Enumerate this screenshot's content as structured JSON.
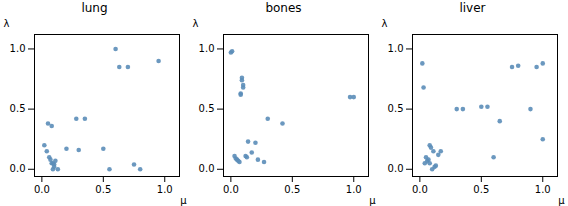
{
  "chart_data": [
    {
      "type": "scatter",
      "title": "lung",
      "xlabel": "μ",
      "ylabel": "λ",
      "x": [
        0.02,
        0.04,
        0.05,
        0.06,
        0.07,
        0.08,
        0.09,
        0.1,
        0.1,
        0.11,
        0.08,
        0.09,
        0.13,
        0.2,
        0.28,
        0.3,
        0.35,
        0.5,
        0.55,
        0.6,
        0.63,
        0.7,
        0.75,
        0.8,
        0.95
      ],
      "values": [
        0.2,
        0.15,
        0.38,
        0.1,
        0.08,
        0.05,
        0.05,
        0.04,
        0.02,
        0.07,
        0.36,
        0.0,
        0.0,
        0.17,
        0.42,
        0.16,
        0.42,
        0.17,
        0.0,
        1.0,
        0.85,
        0.85,
        0.04,
        0.0,
        0.9
      ],
      "color": "#5b8db8",
      "xlim": [
        -0.06,
        1.12
      ],
      "ylim": [
        -0.06,
        1.12
      ],
      "xticks": [
        {
          "value": 0.0,
          "label": "0.0"
        },
        {
          "value": 0.5,
          "label": "0.5"
        },
        {
          "value": 1.0,
          "label": "1.0"
        }
      ],
      "yticks": [
        {
          "value": 0.0,
          "label": "0.0"
        },
        {
          "value": 0.5,
          "label": "0.5"
        },
        {
          "value": 1.0,
          "label": "1.0"
        }
      ],
      "grid": false
    },
    {
      "type": "scatter",
      "title": "bones",
      "xlabel": "μ",
      "ylabel": "λ",
      "x": [
        0.0,
        0.01,
        0.03,
        0.04,
        0.05,
        0.06,
        0.07,
        0.08,
        0.08,
        0.09,
        0.09,
        0.1,
        0.1,
        0.12,
        0.13,
        0.14,
        0.17,
        0.2,
        0.22,
        0.27,
        0.3,
        0.42,
        0.97,
        1.0
      ],
      "values": [
        0.97,
        0.98,
        0.11,
        0.09,
        0.08,
        0.07,
        0.06,
        0.63,
        0.62,
        0.76,
        0.74,
        0.7,
        0.68,
        0.11,
        0.1,
        0.23,
        0.14,
        0.22,
        0.08,
        0.06,
        0.42,
        0.38,
        0.6,
        0.6
      ],
      "color": "#5b8db8",
      "xlim": [
        -0.06,
        1.12
      ],
      "ylim": [
        -0.06,
        1.12
      ],
      "xticks": [
        {
          "value": 0.0,
          "label": "0.0"
        },
        {
          "value": 0.5,
          "label": "0.5"
        },
        {
          "value": 1.0,
          "label": "1.0"
        }
      ],
      "yticks": [
        {
          "value": 0.0,
          "label": "0.0"
        },
        {
          "value": 0.5,
          "label": "0.5"
        },
        {
          "value": 1.0,
          "label": "1.0"
        }
      ],
      "grid": false
    },
    {
      "type": "scatter",
      "title": "liver",
      "xlabel": "μ",
      "ylabel": "λ",
      "x": [
        0.02,
        0.03,
        0.04,
        0.05,
        0.06,
        0.07,
        0.08,
        0.08,
        0.09,
        0.1,
        0.11,
        0.12,
        0.13,
        0.15,
        0.17,
        0.3,
        0.35,
        0.5,
        0.55,
        0.6,
        0.65,
        0.75,
        0.8,
        0.9,
        0.95,
        1.0,
        1.0
      ],
      "values": [
        0.88,
        0.68,
        0.05,
        0.1,
        0.07,
        0.08,
        0.05,
        0.2,
        0.18,
        0.0,
        0.15,
        0.02,
        0.03,
        0.12,
        0.15,
        0.5,
        0.5,
        0.52,
        0.52,
        0.1,
        0.4,
        0.85,
        0.86,
        0.5,
        0.85,
        0.88,
        0.25
      ],
      "color": "#5b8db8",
      "xlim": [
        -0.06,
        1.12
      ],
      "ylim": [
        -0.06,
        1.12
      ],
      "xticks": [
        {
          "value": 0.0,
          "label": "0.0"
        },
        {
          "value": 0.5,
          "label": "0.5"
        },
        {
          "value": 1.0,
          "label": "1.0"
        }
      ],
      "yticks": [
        {
          "value": 0.0,
          "label": "0.0"
        },
        {
          "value": 0.5,
          "label": "0.5"
        },
        {
          "value": 1.0,
          "label": "1.0"
        }
      ],
      "grid": false
    }
  ]
}
